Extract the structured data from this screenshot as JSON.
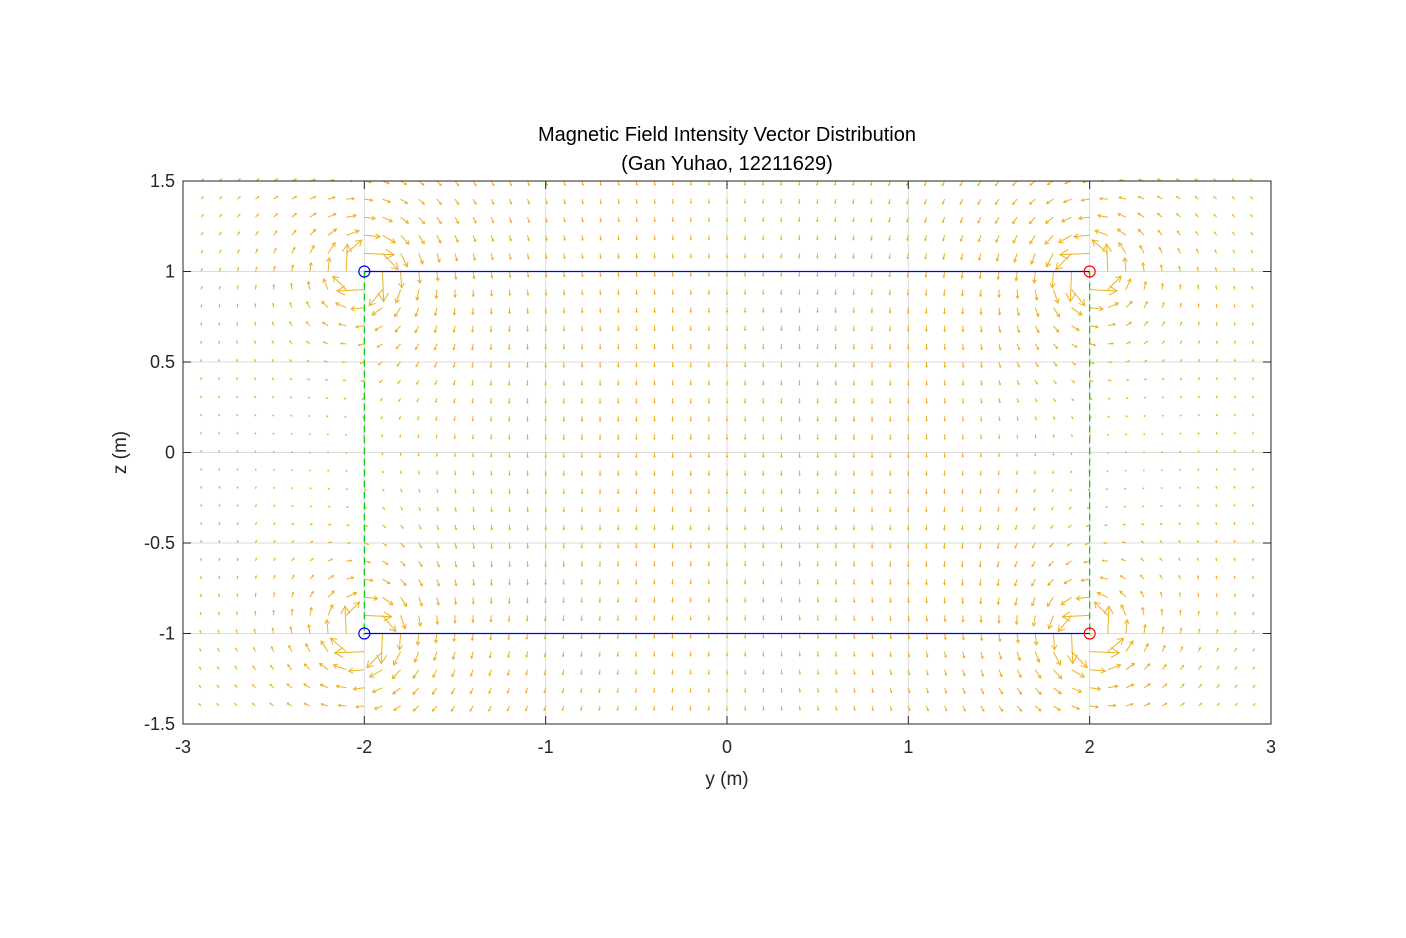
{
  "chart_data": {
    "type": "quiver",
    "title": "Magnetic Field Intensity Vector Distribution",
    "subtitle": "(Gan Yuhao, 12211629)",
    "xlabel": "y (m)",
    "ylabel": "z (m)",
    "xlim": [
      -3,
      3
    ],
    "ylim": [
      -1.5,
      1.5
    ],
    "x_ticks": [
      "-3",
      "-2",
      "-1",
      "0",
      "1",
      "2",
      "3"
    ],
    "y_ticks": [
      "1.5",
      "1",
      "0.5",
      "0",
      "-0.5",
      "-1",
      "-1.5"
    ],
    "grid": true,
    "box": true,
    "arrow_color": "#EDB120",
    "vector_field": {
      "description_source": "line currents at conductor positions",
      "grid_spacing": 0.1,
      "x_range": [
        -2.9,
        2.9
      ],
      "y_range": [
        -1.4,
        1.5
      ],
      "currents": [
        {
          "y": -2,
          "z": 1,
          "dir": -1
        },
        {
          "y": -2,
          "z": -1,
          "dir": -1
        },
        {
          "y": 2,
          "z": 1,
          "dir": 1
        },
        {
          "y": 2,
          "z": -1,
          "dir": 1
        }
      ]
    },
    "conductors": [
      {
        "y": -2,
        "z": 1,
        "color": "#0000FF"
      },
      {
        "y": -2,
        "z": -1,
        "color": "#0000FF"
      },
      {
        "y": 2,
        "z": 1,
        "color": "#FF0000"
      },
      {
        "y": 2,
        "z": -1,
        "color": "#FF0000"
      }
    ],
    "solid_lines": [
      {
        "from": [
          -2,
          1
        ],
        "to": [
          2,
          1
        ],
        "color": "#0000FF"
      },
      {
        "from": [
          -2,
          -1
        ],
        "to": [
          2,
          -1
        ],
        "color": "#0000FF"
      }
    ],
    "dashed_lines": [
      {
        "from": [
          -2,
          1
        ],
        "to": [
          -2,
          -1
        ],
        "color": "#00CC00"
      },
      {
        "from": [
          2,
          1
        ],
        "to": [
          2,
          -1
        ],
        "color": "#00CC00"
      }
    ]
  }
}
